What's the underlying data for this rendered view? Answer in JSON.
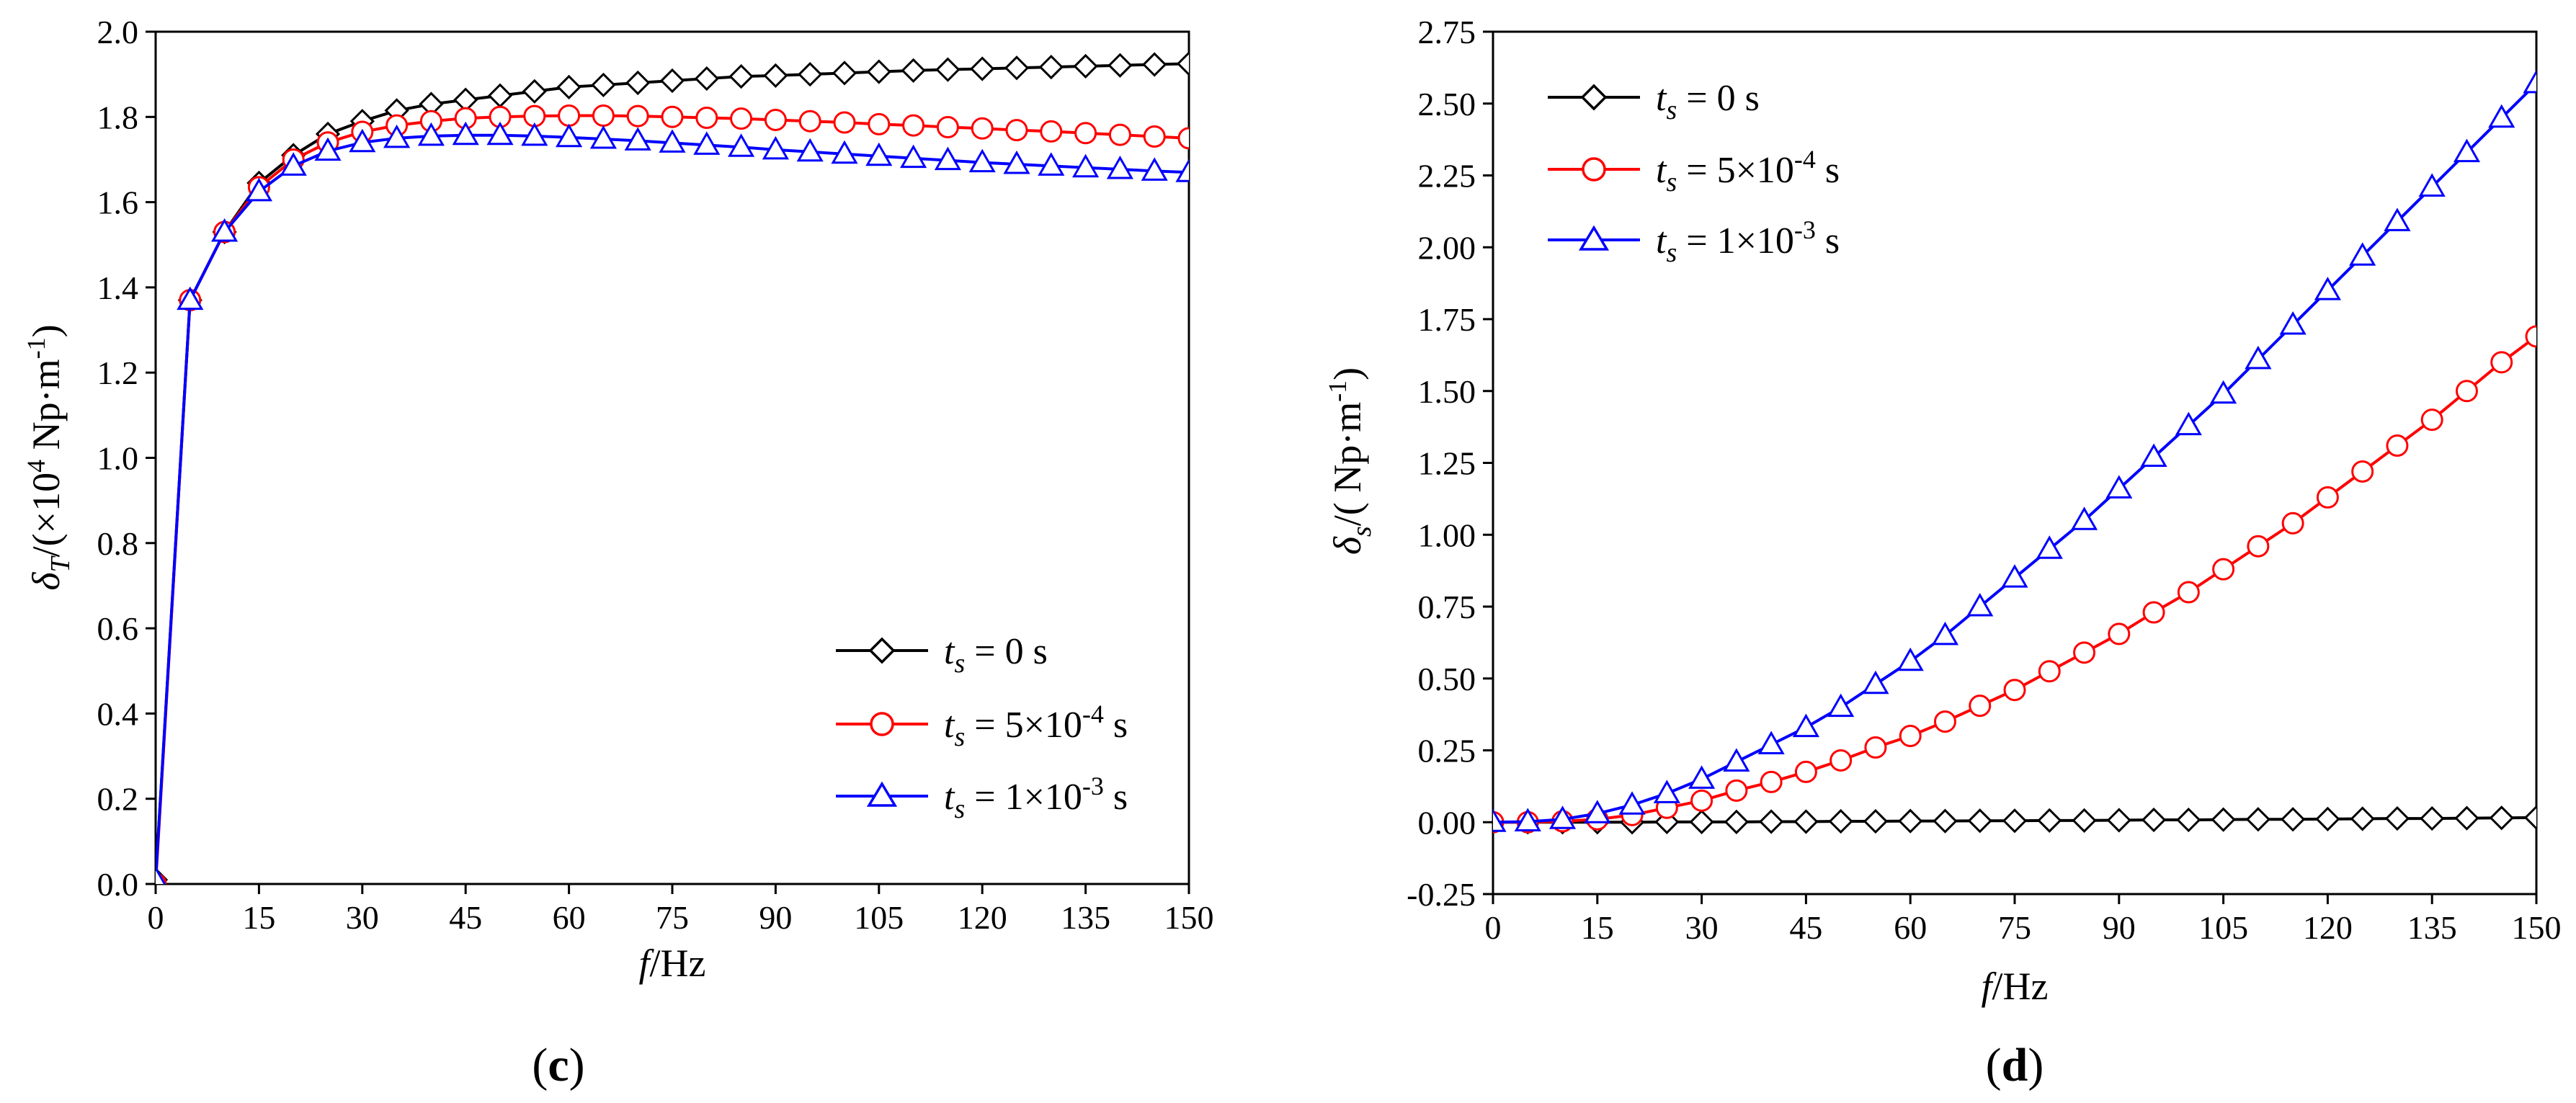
{
  "colors": {
    "series0": "#000000",
    "series1": "#ff0000",
    "series2": "#0000ff"
  },
  "legend_entries": [
    {
      "t": "t",
      "sub": "s",
      "eq": " = ",
      "value": "0 s",
      "marker": "diamond"
    },
    {
      "t": "t",
      "sub": "s",
      "eq": " = ",
      "value": "5×10",
      "exp": "-4",
      "unit": " s",
      "marker": "circle"
    },
    {
      "t": "t",
      "sub": "s",
      "eq": " = ",
      "value": "1×10",
      "exp": "-3",
      "unit": " s",
      "marker": "triangle"
    }
  ],
  "panels": [
    {
      "label_open": "(",
      "label_letter": "c",
      "label_close": ")",
      "xlabel": {
        "f": "f",
        "rest": "/Hz"
      },
      "ylabel": {
        "delta": "δ",
        "sub": "T",
        "part1": "/(×10",
        "exp1": "4",
        "part2": " Np·m",
        "exp2": "-1",
        "part3": ")"
      },
      "xticks": [
        "0",
        "15",
        "30",
        "45",
        "60",
        "75",
        "90",
        "105",
        "120",
        "135",
        "150"
      ],
      "yticks": [
        "0.0",
        "0.2",
        "0.4",
        "0.6",
        "0.8",
        "1.0",
        "1.2",
        "1.4",
        "1.6",
        "1.8",
        "2.0"
      ]
    },
    {
      "label_open": "(",
      "label_letter": "d",
      "label_close": ")",
      "xlabel": {
        "f": "f",
        "rest": "/Hz"
      },
      "ylabel": {
        "delta": "δ",
        "sub": "s",
        "part1": "/( Np·m",
        "exp1": "-1",
        "part2": ")"
      },
      "xticks": [
        "0",
        "15",
        "30",
        "45",
        "60",
        "75",
        "90",
        "105",
        "120",
        "135",
        "150"
      ],
      "yticks": [
        "-0.25",
        "0.00",
        "0.25",
        "0.50",
        "0.75",
        "1.00",
        "1.25",
        "1.50",
        "1.75",
        "2.00",
        "2.25",
        "2.50",
        "2.75"
      ]
    }
  ],
  "chart_data": [
    {
      "type": "line",
      "xlabel": "f /Hz",
      "ylabel": "δT /(×10^4 Np·m^-1)",
      "xlim": [
        0,
        150
      ],
      "ylim": [
        0,
        2.0
      ],
      "x": [
        0,
        5,
        10,
        15,
        20,
        25,
        30,
        35,
        40,
        45,
        50,
        55,
        60,
        65,
        70,
        75,
        80,
        85,
        90,
        95,
        100,
        105,
        110,
        115,
        120,
        125,
        130,
        135,
        140,
        145,
        150
      ],
      "series": [
        {
          "name": "ts = 0 s",
          "marker": "diamond",
          "values": [
            0.01,
            1.37,
            1.53,
            1.645,
            1.71,
            1.76,
            1.79,
            1.815,
            1.83,
            1.84,
            1.85,
            1.86,
            1.87,
            1.875,
            1.88,
            1.885,
            1.89,
            1.895,
            1.897,
            1.9,
            1.903,
            1.906,
            1.909,
            1.911,
            1.913,
            1.915,
            1.917,
            1.919,
            1.921,
            1.923,
            1.925
          ]
        },
        {
          "name": "ts = 5×10^-4 s",
          "marker": "circle",
          "values": [
            0.0,
            1.37,
            1.53,
            1.635,
            1.7,
            1.74,
            1.765,
            1.78,
            1.79,
            1.797,
            1.8,
            1.802,
            1.803,
            1.803,
            1.802,
            1.8,
            1.798,
            1.796,
            1.793,
            1.79,
            1.787,
            1.783,
            1.78,
            1.776,
            1.773,
            1.769,
            1.766,
            1.762,
            1.758,
            1.754,
            1.75
          ]
        },
        {
          "name": "ts = 1×10^-3 s",
          "marker": "triangle",
          "values": [
            0.01,
            1.37,
            1.53,
            1.625,
            1.685,
            1.72,
            1.74,
            1.75,
            1.755,
            1.757,
            1.757,
            1.755,
            1.752,
            1.748,
            1.744,
            1.739,
            1.734,
            1.729,
            1.723,
            1.718,
            1.713,
            1.708,
            1.703,
            1.698,
            1.693,
            1.689,
            1.685,
            1.681,
            1.677,
            1.673,
            1.67
          ]
        }
      ]
    },
    {
      "type": "line",
      "xlabel": "f /Hz",
      "ylabel": "δs /( Np·m^-1)",
      "xlim": [
        0,
        150
      ],
      "ylim": [
        -0.25,
        2.75
      ],
      "x": [
        0,
        5,
        10,
        15,
        20,
        25,
        30,
        35,
        40,
        45,
        50,
        55,
        60,
        65,
        70,
        75,
        80,
        85,
        90,
        95,
        100,
        105,
        110,
        115,
        120,
        125,
        130,
        135,
        140,
        145,
        150
      ],
      "series": [
        {
          "name": "ts = 0 s",
          "marker": "diamond",
          "values": [
            0.0,
            0.0,
            0.0,
            0.0,
            0.0,
            0.001,
            0.001,
            0.001,
            0.002,
            0.002,
            0.003,
            0.003,
            0.004,
            0.004,
            0.005,
            0.005,
            0.006,
            0.006,
            0.007,
            0.008,
            0.008,
            0.009,
            0.01,
            0.01,
            0.011,
            0.012,
            0.013,
            0.013,
            0.014,
            0.015,
            0.016
          ]
        },
        {
          "name": "ts = 5×10^-4 s",
          "marker": "circle",
          "values": [
            0.0,
            0.0,
            0.003,
            0.01,
            0.025,
            0.05,
            0.075,
            0.11,
            0.14,
            0.175,
            0.215,
            0.26,
            0.3,
            0.35,
            0.405,
            0.46,
            0.525,
            0.59,
            0.655,
            0.73,
            0.8,
            0.88,
            0.96,
            1.04,
            1.13,
            1.22,
            1.31,
            1.4,
            1.5,
            1.6,
            1.69
          ]
        },
        {
          "name": "ts = 1×10^-3 s",
          "marker": "triangle",
          "values": [
            0.0,
            0.002,
            0.01,
            0.03,
            0.06,
            0.1,
            0.15,
            0.21,
            0.27,
            0.33,
            0.4,
            0.48,
            0.56,
            0.65,
            0.75,
            0.85,
            0.95,
            1.05,
            1.16,
            1.27,
            1.38,
            1.49,
            1.61,
            1.73,
            1.85,
            1.97,
            2.09,
            2.21,
            2.33,
            2.45,
            2.57
          ]
        }
      ]
    }
  ]
}
